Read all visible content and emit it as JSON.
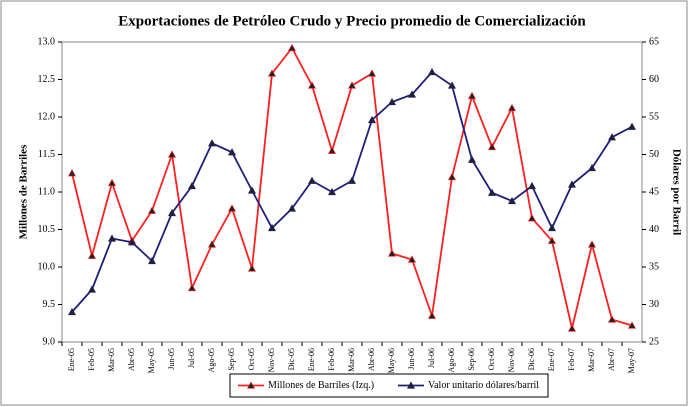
{
  "chart_data": {
    "type": "line",
    "title": "Exportaciones de Petróleo Crudo y Precio promedio de Comercialización",
    "y_label": "Millones de Barriles",
    "y2_label": "Dólares por Barril",
    "categories": [
      "Ene-05",
      "Feb-05",
      "Mar-05",
      "Abr-05",
      "May-05",
      "Jun-05",
      "Jul-05",
      "Ago-05",
      "Sep-05",
      "Oct-05",
      "Nov-05",
      "Dic-05",
      "Ene-06",
      "Feb-06",
      "Mar-06",
      "Abr-06",
      "May-06",
      "Jun-06",
      "Jul-06",
      "Ago-06",
      "Sep-06",
      "Oct-06",
      "Nov-06",
      "Dic-06",
      "Ene-07",
      "Feb-07",
      "Mar-07",
      "Abr-07",
      "May-07"
    ],
    "series": [
      {
        "name": "Millones de Barriles (Izq.)",
        "color": "#ff2020",
        "axis": "y",
        "values": [
          11.25,
          10.15,
          11.12,
          10.35,
          10.75,
          11.5,
          9.72,
          10.3,
          10.78,
          9.98,
          12.58,
          12.92,
          12.42,
          11.55,
          12.42,
          12.58,
          10.18,
          10.1,
          9.35,
          11.2,
          12.28,
          11.6,
          12.12,
          10.65,
          10.35,
          9.18,
          10.3,
          9.3,
          9.22
        ]
      },
      {
        "name": "Valor unitario dólares/barril",
        "color": "#1f1f7a",
        "axis": "y2",
        "values": [
          29,
          32,
          38.8,
          38.3,
          35.8,
          42.2,
          45.8,
          51.5,
          50.3,
          45.2,
          40.2,
          42.8,
          46.5,
          45,
          46.5,
          54.6,
          57,
          58,
          61,
          59.2,
          49.3,
          44.9,
          43.8,
          45.8,
          40.2,
          46,
          48.2,
          52.3,
          53.7
        ]
      }
    ],
    "ylim": [
      9,
      13
    ],
    "yticks": [
      {
        "value": 9,
        "label": "9.0"
      },
      {
        "value": 9.5,
        "label": "9.5"
      },
      {
        "value": 10,
        "label": "10.0"
      },
      {
        "value": 10.5,
        "label": "10.5"
      },
      {
        "value": 11,
        "label": "11.0"
      },
      {
        "value": 11.5,
        "label": "11.5"
      },
      {
        "value": 12,
        "label": "12.0"
      },
      {
        "value": 12.5,
        "label": "12.5"
      },
      {
        "value": 13,
        "label": "13.0"
      }
    ],
    "y2lim": [
      25,
      65
    ],
    "y2ticks": [
      25,
      30,
      35,
      40,
      45,
      50,
      55,
      60,
      65
    ],
    "grid": false,
    "legend": "bottom"
  }
}
